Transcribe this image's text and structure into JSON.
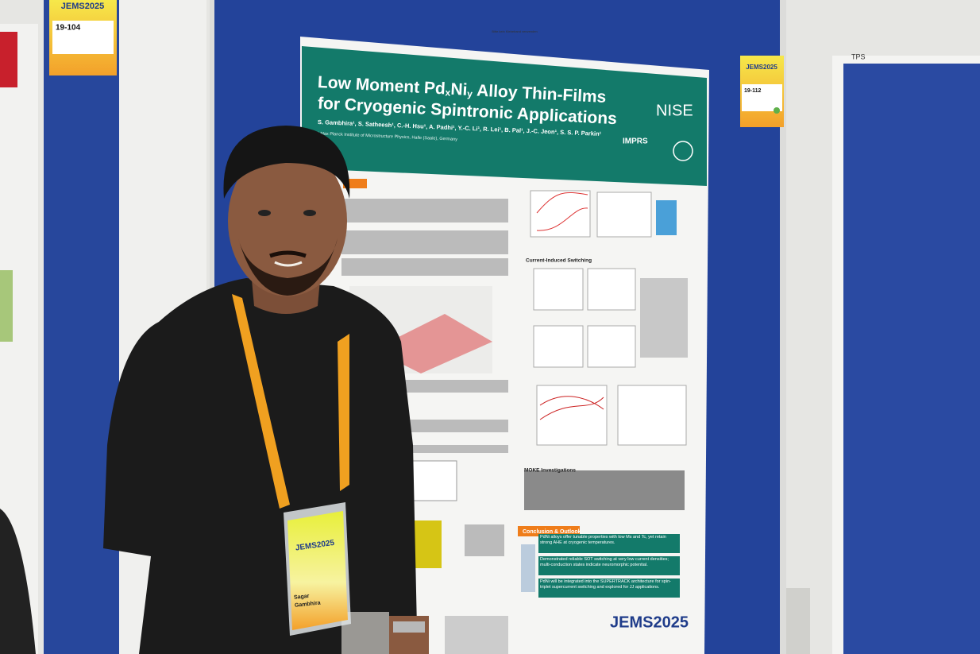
{
  "tags": {
    "left": {
      "brand": "JEMS2025",
      "number": "19-104"
    },
    "right": {
      "brand": "JEMS2025",
      "number": "19-112"
    },
    "board": "TPS"
  },
  "poster": {
    "header_note": "Bitte kein Klebeband verwenden",
    "title": {
      "line1": [
        "Low Moment Pd",
        "x",
        "Ni",
        "y",
        " Alloy Thin-Films"
      ],
      "line2": "for Cryogenic Spintronic Applications"
    },
    "authors": "S. Gambhira¹, S. Satheesh¹, C.-H. Hsu¹, A. Padhi¹, Y.-C. Li¹, R. Lei¹, B. Pal¹, J.-C. Jeon¹, S. S. P. Parkin¹",
    "affiliation": "¹ Max Planck Institute of Microstructure Physics, Halle (Saale), Germany",
    "logos": [
      "NISE",
      "IMPRS"
    ],
    "sections": [
      "Current-Induced Switching",
      "MOKE Investigations",
      "Conclusion & Outlook"
    ],
    "conclusions": [
      "PdNi alloys offer tunable properties with low Ms and Tc, yet retain strong AHE at cryogenic temperatures.",
      "Demonstrated reliable SOT switching at very low current densities; multi-conduction states indicate neuromorphic potential.",
      "PdNi will be integrated into the SUPERTRACK architecture for spin-triplet supercurrent switching and explored for JJ applications."
    ],
    "footer": "JEMS2025"
  },
  "badge": {
    "name": [
      "Sagar",
      "Gambhira"
    ],
    "brand": "JEMS2025"
  }
}
